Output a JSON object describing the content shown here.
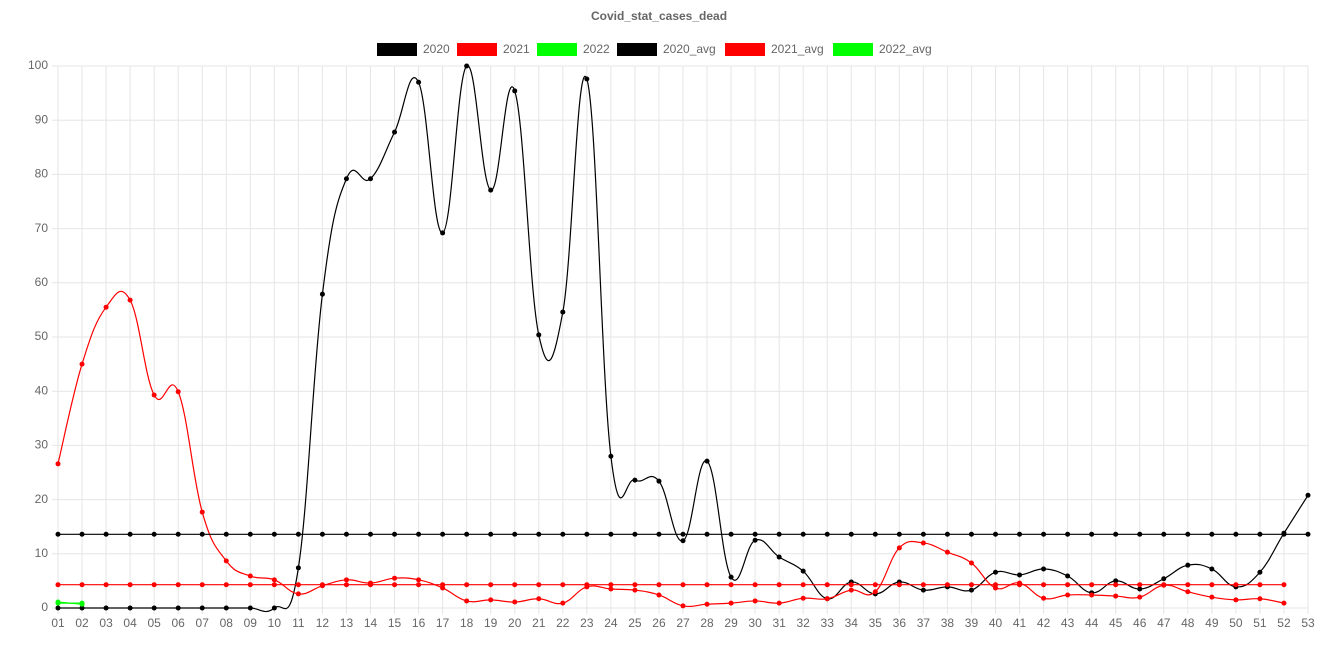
{
  "chart_data": {
    "type": "line",
    "title": "Covid_stat_cases_dead",
    "categories": [
      "01",
      "02",
      "03",
      "04",
      "05",
      "06",
      "07",
      "08",
      "09",
      "10",
      "11",
      "12",
      "13",
      "14",
      "15",
      "16",
      "17",
      "18",
      "19",
      "20",
      "21",
      "22",
      "23",
      "24",
      "25",
      "26",
      "27",
      "28",
      "29",
      "30",
      "31",
      "32",
      "33",
      "34",
      "35",
      "36",
      "37",
      "38",
      "39",
      "40",
      "41",
      "42",
      "43",
      "44",
      "45",
      "46",
      "47",
      "48",
      "49",
      "50",
      "51",
      "52",
      "53"
    ],
    "ylim": [
      0,
      100
    ],
    "yticks": [
      0,
      10,
      20,
      30,
      40,
      50,
      60,
      70,
      80,
      90,
      100
    ],
    "grid": true,
    "legend": "top",
    "series": [
      {
        "name": "2020",
        "color": "#000000",
        "values": [
          0,
          0,
          0,
          0,
          0,
          0,
          0,
          0,
          0,
          0,
          7.4,
          57.9,
          79.2,
          79.2,
          87.8,
          97.0,
          69.2,
          100,
          77.1,
          95.4,
          50.4,
          54.6,
          97.6,
          28.0,
          23.6,
          23.4,
          12.4,
          27.1,
          5.7,
          12.5,
          9.4,
          6.8,
          1.7,
          4.8,
          2.6,
          4.8,
          3.3,
          3.9,
          3.3,
          6.6,
          6.1,
          7.2,
          5.9,
          2.8,
          5.0,
          3.5,
          5.4,
          7.9,
          7.2,
          3.9,
          6.6,
          13.8,
          20.8
        ]
      },
      {
        "name": "2021",
        "color": "#ff0000",
        "values": [
          26.6,
          45.0,
          55.5,
          56.8,
          39.3,
          39.9,
          17.7,
          8.7,
          5.9,
          5.2,
          2.6,
          4.1,
          5.2,
          4.6,
          5.5,
          5.2,
          3.7,
          1.3,
          1.5,
          1.1,
          1.7,
          0.9,
          3.9,
          3.5,
          3.3,
          2.4,
          0.4,
          0.7,
          0.9,
          1.3,
          0.9,
          1.8,
          1.7,
          3.3,
          3.0,
          11.1,
          12.0,
          10.3,
          8.3,
          3.7,
          4.6,
          1.8,
          2.4,
          2.4,
          2.2,
          2.0,
          4.2,
          3.0,
          2.0,
          1.5,
          1.7,
          0.9,
          null
        ]
      },
      {
        "name": "2022",
        "color": "#00ff00",
        "values": [
          1.1,
          0.7,
          null,
          null,
          null,
          null,
          null,
          null,
          null,
          null,
          null,
          null,
          null,
          null,
          null,
          null,
          null,
          null,
          null,
          null,
          null,
          null,
          null,
          null,
          null,
          null,
          null,
          null,
          null,
          null,
          null,
          null,
          null,
          null,
          null,
          null,
          null,
          null,
          null,
          null,
          null,
          null,
          null,
          null,
          null,
          null,
          null,
          null,
          null,
          null,
          null,
          null,
          null
        ]
      },
      {
        "name": "2020_avg",
        "color": "#000000",
        "values": [
          13.6,
          13.6,
          13.6,
          13.6,
          13.6,
          13.6,
          13.6,
          13.6,
          13.6,
          13.6,
          13.6,
          13.6,
          13.6,
          13.6,
          13.6,
          13.6,
          13.6,
          13.6,
          13.6,
          13.6,
          13.6,
          13.6,
          13.6,
          13.6,
          13.6,
          13.6,
          13.6,
          13.6,
          13.6,
          13.6,
          13.6,
          13.6,
          13.6,
          13.6,
          13.6,
          13.6,
          13.6,
          13.6,
          13.6,
          13.6,
          13.6,
          13.6,
          13.6,
          13.6,
          13.6,
          13.6,
          13.6,
          13.6,
          13.6,
          13.6,
          13.6,
          13.6,
          13.6
        ]
      },
      {
        "name": "2021_avg",
        "color": "#ff0000",
        "values": [
          4.3,
          4.3,
          4.3,
          4.3,
          4.3,
          4.3,
          4.3,
          4.3,
          4.3,
          4.3,
          4.3,
          4.3,
          4.3,
          4.3,
          4.3,
          4.3,
          4.3,
          4.3,
          4.3,
          4.3,
          4.3,
          4.3,
          4.3,
          4.3,
          4.3,
          4.3,
          4.3,
          4.3,
          4.3,
          4.3,
          4.3,
          4.3,
          4.3,
          4.3,
          4.3,
          4.3,
          4.3,
          4.3,
          4.3,
          4.3,
          4.3,
          4.3,
          4.3,
          4.3,
          4.3,
          4.3,
          4.3,
          4.3,
          4.3,
          4.3,
          4.3,
          4.3,
          null
        ]
      },
      {
        "name": "2022_avg",
        "color": "#00ff00",
        "values": [
          0.9,
          0.9,
          null,
          null,
          null,
          null,
          null,
          null,
          null,
          null,
          null,
          null,
          null,
          null,
          null,
          null,
          null,
          null,
          null,
          null,
          null,
          null,
          null,
          null,
          null,
          null,
          null,
          null,
          null,
          null,
          null,
          null,
          null,
          null,
          null,
          null,
          null,
          null,
          null,
          null,
          null,
          null,
          null,
          null,
          null,
          null,
          null,
          null,
          null,
          null,
          null,
          null,
          null
        ]
      }
    ]
  }
}
